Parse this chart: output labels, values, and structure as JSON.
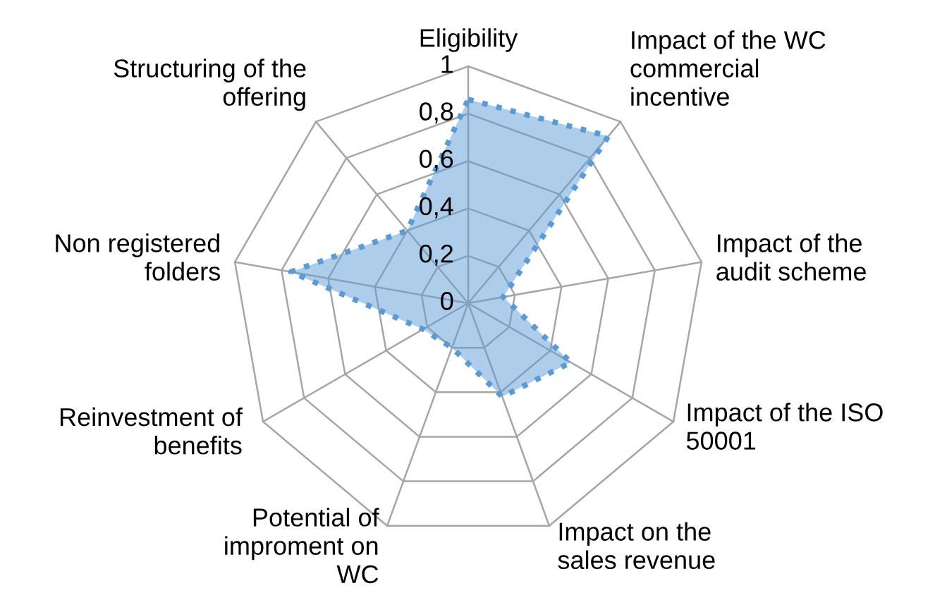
{
  "chart_data": {
    "type": "radar",
    "categories": [
      "Eligibility",
      "Impact of the WC\ncommercial\nincentive",
      "Impact of the\naudit scheme",
      "Impact of the ISO\n50001",
      "Impact on the\nsales revenue",
      "Potential of\nimproment on\nWC",
      "Reinvestment of\nbenefits",
      "Non registered\nfolders",
      "Structuring of the\noffering"
    ],
    "series": [
      {
        "color": "#5b9bd5",
        "values": [
          0.86,
          0.92,
          0.15,
          0.5,
          0.42,
          0.2,
          0.22,
          0.76,
          0.4
        ]
      }
    ],
    "ylim": [
      0,
      1
    ],
    "yticks": [
      {
        "value": 0,
        "label": "0"
      },
      {
        "value": 0.2,
        "label": "0,2"
      },
      {
        "value": 0.4,
        "label": "0,4"
      },
      {
        "value": 0.6,
        "label": "0,6"
      },
      {
        "value": 0.8,
        "label": "0,8"
      },
      {
        "value": 1,
        "label": "1"
      }
    ],
    "line_style": "dotted",
    "grid": true
  }
}
